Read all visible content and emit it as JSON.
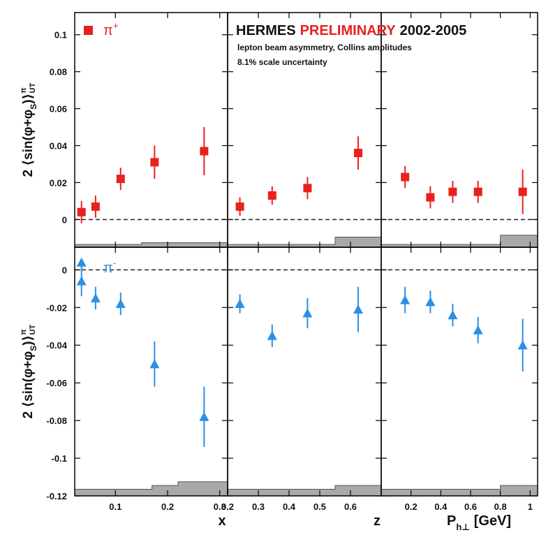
{
  "header": {
    "experiment": "HERMES",
    "status": "PRELIMINARY",
    "years": "2002-2005",
    "subtitle": "lepton beam asymmetry, Collins amplitudes",
    "scale_note": "8.1% scale uncertainty"
  },
  "colors": {
    "pi_plus": "#e8211f",
    "pi_minus": "#2a8fe6",
    "band": "#a9a9a9",
    "frame": "#000000"
  },
  "chart_data": {
    "type": "scatter",
    "ylabel": "2 ⟨sin(φ+φS)⟩UT",
    "ylabel_parts": {
      "base": "2 ⟨sin(φ+φ",
      "sub_s": "S",
      "close": ")⟩",
      "sup": "π",
      "sub": "UT"
    },
    "row_titles": [
      {
        "text": "π",
        "sup": "+"
      },
      {
        "text": "π",
        "sup": "-"
      }
    ],
    "rows": [
      {
        "ylim": [
          -0.015,
          0.112
        ],
        "ticks": [
          0,
          0.02,
          0.04,
          0.06,
          0.08,
          0.1
        ],
        "tick_labels": [
          "0",
          "0.02",
          "0.04",
          "0.06",
          "0.08",
          "0.1"
        ]
      },
      {
        "ylim": [
          -0.12,
          0.012
        ],
        "ticks": [
          0,
          -0.02,
          -0.04,
          -0.06,
          -0.08,
          -0.1,
          -0.12
        ],
        "tick_labels": [
          "0",
          "-0.02",
          "-0.04",
          "-0.06",
          "-0.08",
          "-0.1",
          "-0.12"
        ]
      }
    ],
    "columns": [
      {
        "xlabel": "x",
        "xlim": [
          0.022,
          0.315
        ],
        "ticks": [
          0.1,
          0.2,
          0.3
        ],
        "tick_labels": [
          "0.1",
          "0.2",
          "0.3"
        ]
      },
      {
        "xlabel": "z",
        "xlim": [
          0.2,
          0.7
        ],
        "ticks": [
          0.2,
          0.3,
          0.4,
          0.5,
          0.6
        ],
        "tick_labels": [
          "0.2",
          "0.3",
          "0.4",
          "0.5",
          "0.6"
        ]
      },
      {
        "xlabel": "P",
        "xlabel_sub": "h⊥",
        "xlabel_suffix": " [GeV]",
        "xlim": [
          0.0,
          1.05
        ],
        "ticks": [
          0.2,
          0.4,
          0.6,
          0.8,
          1.0
        ],
        "tick_labels": [
          "0.2",
          "0.4",
          "0.6",
          "0.8",
          "1"
        ]
      }
    ],
    "series": [
      {
        "name": "π+",
        "marker": "square",
        "panels": [
          {
            "x": [
              0.035,
              0.062,
              0.11,
              0.175,
              0.27
            ],
            "y": [
              0.004,
              0.007,
              0.022,
              0.031,
              0.037
            ],
            "err": [
              0.006,
              0.006,
              0.006,
              0.009,
              0.013
            ]
          },
          {
            "x": [
              0.24,
              0.345,
              0.46,
              0.625
            ],
            "y": [
              0.007,
              0.013,
              0.017,
              0.036
            ],
            "err": [
              0.005,
              0.005,
              0.006,
              0.009
            ]
          },
          {
            "x": [
              0.16,
              0.33,
              0.48,
              0.65,
              0.95
            ],
            "y": [
              0.023,
              0.012,
              0.015,
              0.015,
              0.015
            ],
            "err": [
              0.006,
              0.006,
              0.006,
              0.006,
              0.012
            ]
          }
        ],
        "bands": [
          {
            "x": [
              0.022,
              0.15,
              0.315
            ],
            "h": [
              -0.0135,
              -0.0125,
              -0.0125
            ]
          },
          {
            "x": [
              0.2,
              0.55,
              0.7
            ],
            "h": [
              -0.0135,
              -0.0095,
              -0.0095
            ]
          },
          {
            "x": [
              0.0,
              0.8,
              1.05
            ],
            "h": [
              -0.0135,
              -0.0085,
              -0.0085
            ]
          }
        ]
      },
      {
        "name": "π-",
        "marker": "triangle",
        "panels": [
          {
            "x": [
              0.035,
              0.062,
              0.11,
              0.175,
              0.27
            ],
            "y": [
              -0.006,
              -0.015,
              -0.018,
              -0.05,
              -0.078
            ],
            "err": [
              0.008,
              0.006,
              0.006,
              0.012,
              0.016
            ]
          },
          {
            "x": [
              0.24,
              0.345,
              0.46,
              0.625
            ],
            "y": [
              -0.018,
              -0.035,
              -0.023,
              -0.021
            ],
            "err": [
              0.005,
              0.006,
              0.008,
              0.012
            ]
          },
          {
            "x": [
              0.16,
              0.33,
              0.48,
              0.65,
              0.95
            ],
            "y": [
              -0.016,
              -0.017,
              -0.024,
              -0.032,
              -0.04
            ],
            "err": [
              0.007,
              0.006,
              0.006,
              0.007,
              0.014
            ]
          }
        ],
        "bands": [
          {
            "x": [
              0.022,
              0.17,
              0.22,
              0.315
            ],
            "h": [
              -0.1165,
              -0.1145,
              -0.1125,
              -0.1125
            ]
          },
          {
            "x": [
              0.2,
              0.55,
              0.7
            ],
            "h": [
              -0.1165,
              -0.1145,
              -0.1075
            ]
          },
          {
            "x": [
              0.0,
              0.8,
              1.05
            ],
            "h": [
              -0.1165,
              -0.1145,
              -0.1145
            ]
          }
        ]
      }
    ],
    "extra_marker": {
      "series": "π-",
      "panel": 0,
      "x": 0.035,
      "y": 0.004
    },
    "zero_line": "dashed"
  }
}
